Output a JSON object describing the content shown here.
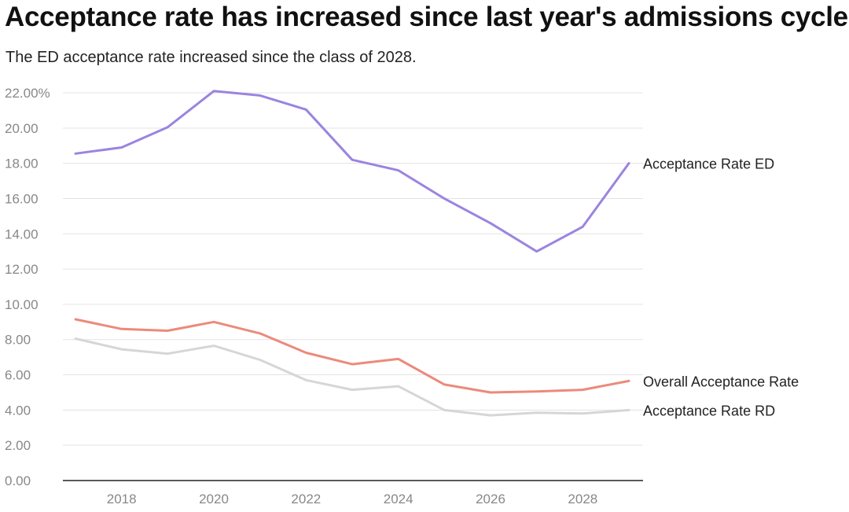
{
  "chart_data": {
    "type": "line",
    "title": "Acceptance rate has increased since last year's admissions cycle",
    "subtitle": "The ED acceptance rate increased since the class of 2028.",
    "xlabel": "",
    "ylabel": "",
    "x": [
      2017,
      2018,
      2019,
      2020,
      2021,
      2022,
      2023,
      2024,
      2025,
      2026,
      2027,
      2028,
      2029
    ],
    "xticks": [
      2018,
      2020,
      2022,
      2024,
      2026,
      2028
    ],
    "xtick_labels": [
      "2018",
      "2020",
      "2022",
      "2024",
      "2026",
      "2028"
    ],
    "xlim": [
      2017,
      2029
    ],
    "ylim": [
      0,
      22
    ],
    "yticks": [
      0,
      2,
      4,
      6,
      8,
      10,
      12,
      14,
      16,
      18,
      20,
      22
    ],
    "ytick_labels": [
      "0.00",
      "2.00",
      "4.00",
      "6.00",
      "8.00",
      "10.00",
      "12.00",
      "14.00",
      "16.00",
      "18.00",
      "20.00",
      "22.00%"
    ],
    "grid": true,
    "legend": "labels at line ends (right)",
    "series": [
      {
        "name": "Acceptance Rate ED",
        "color": "#9b84e0",
        "values": [
          18.55,
          18.9,
          20.05,
          22.1,
          21.85,
          21.05,
          18.2,
          17.6,
          16.0,
          14.6,
          13.0,
          14.4,
          18.0
        ]
      },
      {
        "name": "Overall Acceptance Rate",
        "color": "#ec8a7c",
        "values": [
          9.15,
          8.6,
          8.5,
          9.0,
          8.35,
          7.25,
          6.6,
          6.9,
          5.45,
          5.0,
          5.05,
          5.15,
          5.65
        ]
      },
      {
        "name": "Acceptance Rate RD",
        "color": "#d6d6d6",
        "values": [
          8.05,
          7.45,
          7.2,
          7.65,
          6.85,
          5.7,
          5.15,
          5.35,
          4.0,
          3.7,
          3.85,
          3.8,
          4.0
        ]
      }
    ]
  }
}
